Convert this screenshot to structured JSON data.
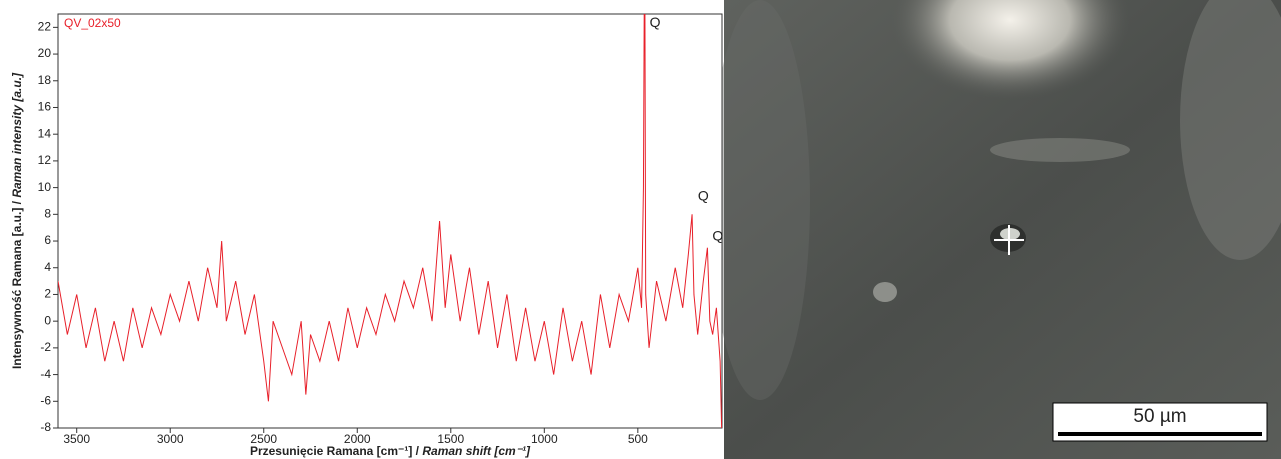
{
  "chart_data": {
    "type": "line",
    "x_label": [
      "Przesunięcie Ramana [cm⁻¹] / ",
      "Raman shift [cm⁻¹]"
    ],
    "y_label": [
      "Intensywność Ramana [a.u.] / ",
      "Raman intensity [a.u.]"
    ],
    "xlim": [
      3600,
      50
    ],
    "ylim": [
      -8,
      23
    ],
    "xticks": [
      3500,
      3000,
      2500,
      2000,
      1500,
      1000,
      500
    ],
    "yticks": [
      -8,
      -6,
      -4,
      -2,
      0,
      2,
      4,
      6,
      8,
      10,
      12,
      14,
      16,
      18,
      20,
      22
    ],
    "annotations": [
      {
        "text": "Q",
        "x": 464,
        "y": 22
      },
      {
        "text": "Q",
        "x": 206,
        "y": 9
      },
      {
        "text": "Q",
        "x": 128,
        "y": 6
      }
    ],
    "series": [
      {
        "name": "QV_02x50",
        "color": "#e8202a",
        "x": [
          3600,
          3550,
          3500,
          3450,
          3400,
          3350,
          3300,
          3250,
          3200,
          3150,
          3100,
          3050,
          3000,
          2950,
          2900,
          2850,
          2800,
          2750,
          2725,
          2700,
          2650,
          2600,
          2550,
          2500,
          2475,
          2450,
          2400,
          2350,
          2300,
          2275,
          2250,
          2200,
          2150,
          2100,
          2050,
          2000,
          1950,
          1900,
          1850,
          1800,
          1750,
          1700,
          1650,
          1600,
          1560,
          1530,
          1500,
          1450,
          1400,
          1350,
          1300,
          1250,
          1200,
          1150,
          1100,
          1050,
          1000,
          950,
          900,
          850,
          800,
          750,
          700,
          650,
          600,
          550,
          500,
          480,
          470,
          466,
          462,
          458,
          440,
          400,
          350,
          300,
          260,
          230,
          210,
          200,
          180,
          150,
          128,
          115,
          100,
          80,
          60,
          52
        ],
        "values": [
          3,
          -1,
          2,
          -2,
          1,
          -3,
          0,
          -3,
          1,
          -2,
          1,
          -1,
          2,
          0,
          3,
          0,
          4,
          1,
          6,
          0,
          3,
          -1,
          2,
          -3,
          -6,
          0,
          -2,
          -4,
          0,
          -5.5,
          -1,
          -3,
          0,
          -3,
          1,
          -2,
          1,
          -1,
          2,
          0,
          3,
          1,
          4,
          0,
          7.5,
          1,
          5,
          0,
          4,
          -1,
          3,
          -2,
          2,
          -3,
          1,
          -3,
          0,
          -4,
          1,
          -3,
          0,
          -4,
          2,
          -2,
          2,
          0,
          4,
          1,
          10,
          23,
          23,
          2,
          -2,
          3,
          0,
          4,
          1,
          5,
          8,
          2,
          -1,
          3,
          5.5,
          0,
          -1,
          1,
          -3,
          -8
        ]
      }
    ]
  },
  "image": {
    "scale_bar": "50 µm"
  }
}
